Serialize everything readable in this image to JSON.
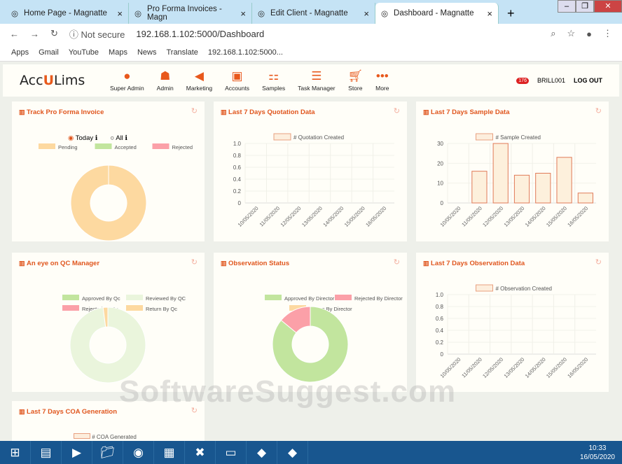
{
  "browser": {
    "tabs": [
      {
        "label": "Home Page - Magnatte"
      },
      {
        "label": "Pro Forma Invoices - Magn"
      },
      {
        "label": "Edit Client - Magnatte"
      },
      {
        "label": "Dashboard - Magnatte",
        "active": true
      }
    ],
    "security": "Not secure",
    "url": "192.168.1.102:5000/Dashboard",
    "bookmarks": [
      "Apps",
      "Gmail",
      "YouTube",
      "Maps",
      "News",
      "Translate",
      "192.168.1.102:5000..."
    ]
  },
  "app": {
    "logo": "AccuLims",
    "nav": [
      "Super Admin",
      "Admin",
      "Marketing",
      "Accounts",
      "Samples",
      "Task Manager",
      "Store",
      "More"
    ],
    "notifications": "176",
    "user": "BRILL001",
    "logout": "LOG OUT",
    "accent": "#e8581c"
  },
  "cards": {
    "proforma": {
      "title": "Track Pro Forma Invoice",
      "radio_today": "Today",
      "radio_all": "All",
      "legend": [
        "Pending",
        "Accepted",
        "Rejected"
      ],
      "values": [
        100,
        0,
        0
      ]
    },
    "quotation": {
      "title": "Last 7 Days Quotation Data",
      "legend": "# Quotation Created"
    },
    "sample": {
      "title": "Last 7 Days Sample Data",
      "legend": "# Sample Created"
    },
    "qc": {
      "title": "An eye on QC Manager",
      "legend": [
        "Approved By Qc",
        "Reviewed By QC",
        "Rejected By Qc",
        "Return By Qc"
      ],
      "values": [
        0,
        98,
        0,
        2
      ]
    },
    "observation_status": {
      "title": "Observation Status",
      "legend": [
        "Approved By Director",
        "Rejected By Director",
        "Return By Director"
      ],
      "values": [
        86,
        14,
        0
      ]
    },
    "observation": {
      "title": "Last 7 Days Observation Data",
      "legend": "# Observation Created"
    },
    "coa": {
      "title": "Last 7 Days COA Generation",
      "legend": "# COA Generated"
    }
  },
  "chart_data": [
    {
      "type": "bar",
      "title": "Last 7 Days Quotation Data",
      "categories": [
        "10/05/2020",
        "11/05/2020",
        "12/05/2020",
        "13/05/2020",
        "14/05/2020",
        "15/05/2020",
        "16/05/2020"
      ],
      "values": [
        0,
        0,
        0,
        0,
        0,
        0,
        0
      ],
      "ylim": [
        0,
        1
      ],
      "yticks": [
        "0",
        "0.2",
        "0.4",
        "0.6",
        "0.8",
        "1.0"
      ]
    },
    {
      "type": "bar",
      "title": "Last 7 Days Sample Data",
      "categories": [
        "10/05/2020",
        "11/05/2020",
        "12/05/2020",
        "13/05/2020",
        "14/05/2020",
        "15/05/2020",
        "16/05/2020"
      ],
      "values": [
        0,
        16,
        30,
        14,
        15,
        23,
        5
      ],
      "ylim": [
        0,
        30
      ],
      "yticks": [
        "0",
        "10",
        "20",
        "30"
      ]
    },
    {
      "type": "bar",
      "title": "Last 7 Days Observation Data",
      "categories": [
        "10/05/2020",
        "11/05/2020",
        "12/05/2020",
        "13/05/2020",
        "14/05/2020",
        "15/05/2020",
        "16/05/2020"
      ],
      "values": [
        0,
        0,
        0,
        0,
        0,
        0,
        0
      ],
      "ylim": [
        0,
        1
      ],
      "yticks": [
        "0",
        "0.2",
        "0.4",
        "0.6",
        "0.8",
        "1.0"
      ]
    }
  ],
  "taskbar": {
    "time": "10:33",
    "date": "16/05/2020"
  },
  "watermark": "SoftwareSuggest.com"
}
